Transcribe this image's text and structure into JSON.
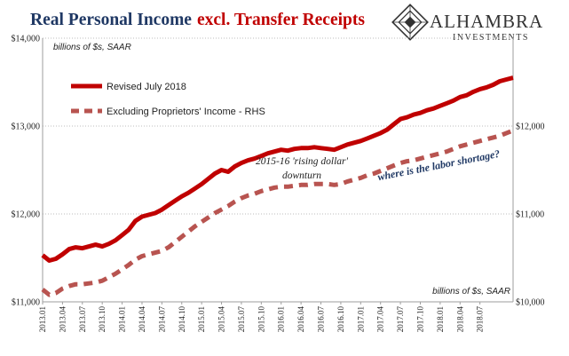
{
  "header": {
    "title_black": "Real Personal Income",
    "title_red": "excl. Transfer Receipts",
    "title_black_color": "#1f3864",
    "title_red_color": "#c00000"
  },
  "logo": {
    "name": "ALHAMBRA",
    "sub": "INVESTMENTS"
  },
  "chart_data": {
    "type": "line",
    "units_left": "billions of $s, SAAR",
    "units_right": "billions of $s, SAAR",
    "x_tick_labels": [
      "2013.01",
      "2013.04",
      "2013.07",
      "2013.10",
      "2014.01",
      "2014.04",
      "2014.07",
      "2014.10",
      "2015.01",
      "2015.04",
      "2015.07",
      "2015.10",
      "2016.01",
      "2016.04",
      "2016.07",
      "2016.10",
      "2017.01",
      "2017.04",
      "2017.07",
      "2017.10",
      "2018.01",
      "2018.04",
      "2018.07"
    ],
    "y_left": {
      "min": 11000,
      "max": 14000,
      "ticks": [
        11000,
        12000,
        13000,
        14000
      ],
      "tick_labels": [
        "$11,000",
        "$12,000",
        "$13,000",
        "$14,000"
      ]
    },
    "y_right": {
      "min": 10000,
      "max": 13000,
      "ticks": [
        10000,
        11000,
        12000
      ],
      "tick_labels": [
        "$10,000",
        "$11,000",
        "$12,000"
      ]
    },
    "grid": true,
    "legend": {
      "position": "top-left"
    },
    "series": [
      {
        "name": "Revised July 2018",
        "axis": "left",
        "style": "solid",
        "color": "#c00000",
        "values": [
          11530,
          11470,
          11490,
          11540,
          11600,
          11620,
          11610,
          11630,
          11650,
          11630,
          11660,
          11700,
          11760,
          11820,
          11920,
          11970,
          11990,
          12010,
          12050,
          12100,
          12150,
          12200,
          12240,
          12290,
          12340,
          12400,
          12460,
          12500,
          12480,
          12540,
          12580,
          12610,
          12630,
          12660,
          12690,
          12710,
          12730,
          12720,
          12740,
          12750,
          12750,
          12760,
          12750,
          12740,
          12730,
          12760,
          12790,
          12810,
          12830,
          12860,
          12890,
          12920,
          12960,
          13020,
          13080,
          13100,
          13130,
          13150,
          13180,
          13200,
          13230,
          13260,
          13290,
          13330,
          13350,
          13390,
          13420,
          13440,
          13470,
          13510,
          13530,
          13550
        ]
      },
      {
        "name": "Excluding Proprietors' Income - RHS",
        "axis": "right",
        "style": "dashed",
        "color": "#b85450",
        "values": [
          10140,
          10080,
          10100,
          10150,
          10180,
          10200,
          10200,
          10210,
          10220,
          10240,
          10280,
          10320,
          10370,
          10420,
          10480,
          10520,
          10540,
          10560,
          10580,
          10620,
          10680,
          10740,
          10800,
          10860,
          10910,
          10960,
          11010,
          11050,
          11090,
          11140,
          11180,
          11210,
          11230,
          11260,
          11280,
          11300,
          11310,
          11310,
          11320,
          11330,
          11330,
          11340,
          11340,
          11340,
          11330,
          11340,
          11370,
          11390,
          11410,
          11440,
          11460,
          11490,
          11520,
          11550,
          11580,
          11600,
          11610,
          11630,
          11650,
          11670,
          11690,
          11710,
          11740,
          11770,
          11790,
          11810,
          11830,
          11850,
          11870,
          11890,
          11920,
          11950
        ]
      }
    ],
    "annotations": [
      {
        "text_line1": "2015-16 'rising dollar'",
        "text_line2": "downturn"
      },
      {
        "text": "where is the labor shortage?",
        "color": "#1f3864"
      }
    ]
  }
}
